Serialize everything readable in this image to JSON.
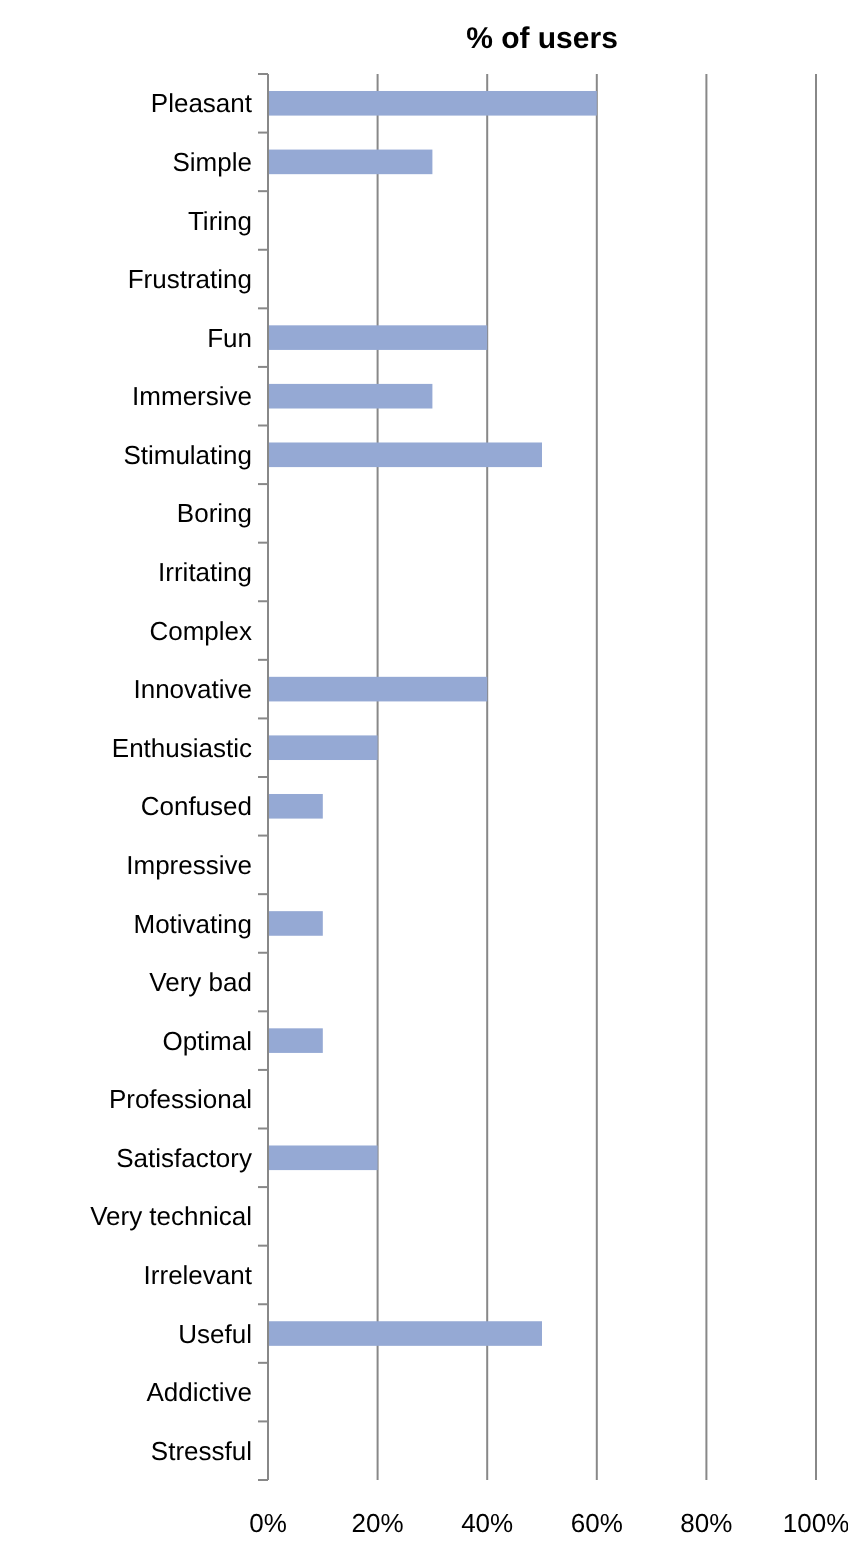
{
  "chart_data": {
    "type": "bar",
    "orientation": "horizontal",
    "title": "% of users",
    "categories": [
      "Pleasant",
      "Simple",
      "Tiring",
      "Frustrating",
      "Fun",
      "Immersive",
      "Stimulating",
      "Boring",
      "Irritating",
      "Complex",
      "Innovative",
      "Enthusiastic",
      "Confused",
      "Impressive",
      "Motivating",
      "Very bad",
      "Optimal",
      "Professional",
      "Satisfactory",
      "Very technical",
      "Irrelevant",
      "Useful",
      "Addictive",
      "Stressful"
    ],
    "values": [
      60,
      30,
      0,
      0,
      40,
      30,
      50,
      0,
      0,
      0,
      40,
      20,
      10,
      0,
      10,
      0,
      10,
      0,
      20,
      0,
      0,
      50,
      0,
      0
    ],
    "color": "#95a9d4",
    "xlim": [
      0,
      100
    ],
    "xticks": [
      {
        "value": 0,
        "label": "0%"
      },
      {
        "value": 20,
        "label": "20%"
      },
      {
        "value": 40,
        "label": "40%"
      },
      {
        "value": 60,
        "label": "60%"
      },
      {
        "value": 80,
        "label": "80%"
      },
      {
        "value": 100,
        "label": "100%"
      }
    ],
    "grid": "x"
  }
}
